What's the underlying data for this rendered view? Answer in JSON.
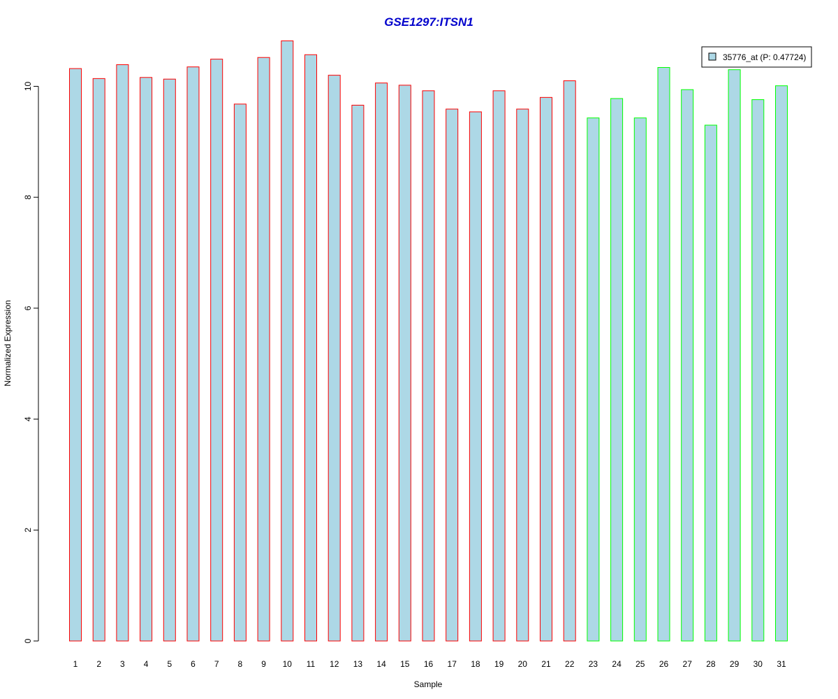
{
  "colors": {
    "bar_fill": "#add8e6",
    "group1_border": "#ff0000",
    "group2_border": "#00ff00",
    "title": "#0000cc"
  },
  "chart_data": {
    "type": "bar",
    "title": "GSE1297:ITSN1",
    "xlabel": "Sample",
    "ylabel": "Normalized Expression",
    "ylim": [
      0,
      10.8
    ],
    "yticks": [
      0,
      2,
      4,
      6,
      8,
      10
    ],
    "yticks_labels": [
      "0",
      "2",
      "4",
      "6",
      "8",
      "10"
    ],
    "grid": false,
    "legend": {
      "position": "top-right",
      "label": "35776_at (P: 0.47724)"
    },
    "categories": [
      "1",
      "2",
      "3",
      "4",
      "5",
      "6",
      "7",
      "8",
      "9",
      "10",
      "11",
      "12",
      "13",
      "14",
      "15",
      "16",
      "17",
      "18",
      "19",
      "20",
      "21",
      "22",
      "23",
      "24",
      "25",
      "26",
      "27",
      "28",
      "29",
      "30",
      "31"
    ],
    "series": [
      {
        "name": "35776_at (P: 0.47724)",
        "values": [
          10.32,
          10.14,
          10.39,
          10.16,
          10.13,
          10.35,
          10.49,
          9.68,
          10.52,
          10.82,
          10.57,
          10.2,
          9.66,
          10.06,
          10.02,
          9.92,
          9.59,
          9.54,
          9.92,
          9.59,
          9.8,
          10.1,
          9.43,
          9.78,
          9.43,
          10.34,
          9.94,
          9.3,
          10.3,
          9.76,
          10.01
        ],
        "group": [
          1,
          1,
          1,
          1,
          1,
          1,
          1,
          1,
          1,
          1,
          1,
          1,
          1,
          1,
          1,
          1,
          1,
          1,
          1,
          1,
          1,
          1,
          2,
          2,
          2,
          2,
          2,
          2,
          2,
          2,
          2
        ]
      }
    ]
  }
}
